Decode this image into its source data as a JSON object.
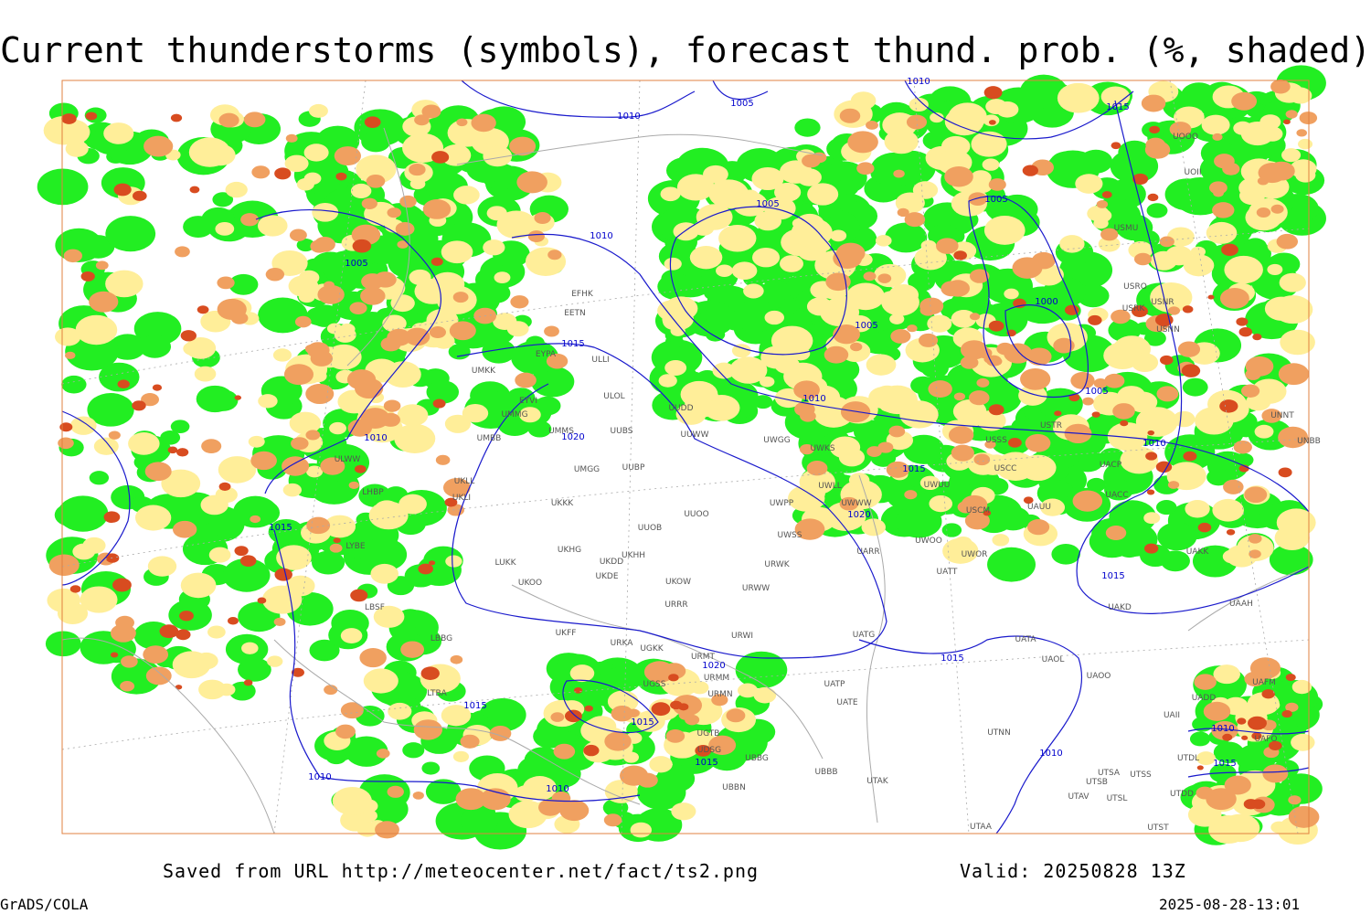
{
  "title": "Current thunderstorms (symbols), forecast thund. prob. (%, shaded)",
  "footer": {
    "source": "Saved from URL http://meteocenter.net/fact/ts2.png",
    "valid": "Valid: 20250828 13Z",
    "software": "GrADS/COLA",
    "timestamp": "2025-08-28-13:01"
  },
  "isobar_labels": [
    "1010",
    "1005",
    "1010",
    "1015",
    "1005",
    "1005",
    "1010",
    "1005",
    "1000",
    "1005",
    "1015",
    "1010",
    "1005",
    "1010",
    "1010",
    "1015",
    "1020",
    "1020",
    "1015",
    "1015",
    "1015",
    "1020",
    "1015",
    "1015",
    "1010",
    "1015",
    "1015",
    "1010",
    "1010",
    "1010"
  ],
  "stations": [
    "UOOO",
    "UOII",
    "USMU",
    "USRO",
    "USNR",
    "USRK",
    "USNN",
    "USTR",
    "USSS",
    "USCC",
    "USCM",
    "UAUU",
    "UACP",
    "UACC",
    "UAKK",
    "UAKD",
    "UAAH",
    "UATA",
    "UAOL",
    "UAOO",
    "UATG",
    "UATT",
    "UWOR",
    "UWOO",
    "UARR",
    "UWPP",
    "UWSS",
    "UWGG",
    "UWKS",
    "UWLL",
    "UWUU",
    "UWWW",
    "UUWW",
    "UUDD",
    "ULOL",
    "ULLI",
    "UMMS",
    "UUBS",
    "UMGG",
    "UUBP",
    "UMBB",
    "UKLL",
    "UKLI",
    "UKKK",
    "UUOB",
    "UUOO",
    "UKHH",
    "UKHG",
    "UKDD",
    "UKDE",
    "UKOO",
    "LUKK",
    "UKOW",
    "URWW",
    "URWK",
    "URRR",
    "UKFF",
    "URKA",
    "UGKK",
    "URMT",
    "URMM",
    "URMN",
    "URWI",
    "UGSS",
    "UGTB",
    "UDSG",
    "UBBG",
    "UBBN",
    "UBBB",
    "UTAK",
    "UATP",
    "UATE",
    "UTNN",
    "UTSA",
    "UTSB",
    "UTSS",
    "UTAV",
    "UTSL",
    "UTAA",
    "UTST",
    "UTDD",
    "UTDL",
    "UAII",
    "UADD",
    "UAFM",
    "UAFO",
    "UNNT",
    "UNBB",
    "ULWW",
    "EYVI",
    "UMMG",
    "UMKK",
    "EYPA",
    "EFHK",
    "EETN",
    "LHBP",
    "LYBE",
    "LBSF",
    "LBBG",
    "LTBA"
  ]
}
